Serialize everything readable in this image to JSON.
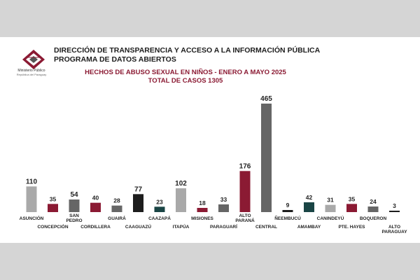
{
  "header": {
    "logo_name": "Ministerio Público",
    "logo_sub": "República del Paraguay",
    "line1": "DIRECCIÓN DE TRANSPARENCIA Y ACCESO A LA INFORMACIÓN PÚBLICA",
    "line2": "PROGRAMA DE DATOS ABIERTOS",
    "subtitle": "HECHOS DE ABUSO SEXUAL EN NIÑOS - ENERO A MAYO 2025",
    "total": "TOTAL DE CASOS 1305"
  },
  "colors": {
    "light_gray": "#a9a9a9",
    "dark_red": "#8b1a33",
    "mid_gray": "#666666",
    "black": "#1d1d1d",
    "dark_teal": "#1a4545",
    "subtitle_red": "#8b1a33"
  },
  "chart_data": {
    "type": "bar",
    "title": "HECHOS DE ABUSO SEXUAL EN NIÑOS - ENERO A MAYO 2025",
    "subtitle": "TOTAL DE CASOS 1305",
    "xlabel": "",
    "ylabel": "",
    "categories": [
      "ASUNCIÓN",
      "CONCEPCIÓN",
      "SAN PEDRO",
      "CORDILLERA",
      "GUAIRÁ",
      "CAAGUAZÚ",
      "CAAZAPÁ",
      "ITAPÚA",
      "MISIONES",
      "PARAGUARÍ",
      "ALTO PARANÁ",
      "CENTRAL",
      "ÑEEMBUCÚ",
      "AMAMBAY",
      "CANINDEYÚ",
      "PTE. HAYES",
      "BOQUERON",
      "ALTO PARAGUAY"
    ],
    "values": [
      110,
      35,
      54,
      40,
      28,
      77,
      23,
      102,
      18,
      33,
      176,
      465,
      9,
      42,
      31,
      35,
      24,
      3
    ],
    "bar_colors": [
      "light_gray",
      "dark_red",
      "mid_gray",
      "dark_red",
      "mid_gray",
      "black",
      "dark_teal",
      "light_gray",
      "dark_red",
      "mid_gray",
      "dark_red",
      "mid_gray",
      "black",
      "dark_teal",
      "light_gray",
      "dark_red",
      "mid_gray",
      "black"
    ],
    "label_rows": [
      "upper",
      "lower",
      "upper",
      "lower",
      "upper",
      "lower",
      "upper",
      "lower",
      "upper",
      "lower",
      "upper",
      "lower",
      "upper",
      "lower",
      "upper",
      "lower",
      "upper",
      "lower"
    ],
    "ylim": [
      0,
      465
    ],
    "grid": false,
    "legend": "none"
  }
}
